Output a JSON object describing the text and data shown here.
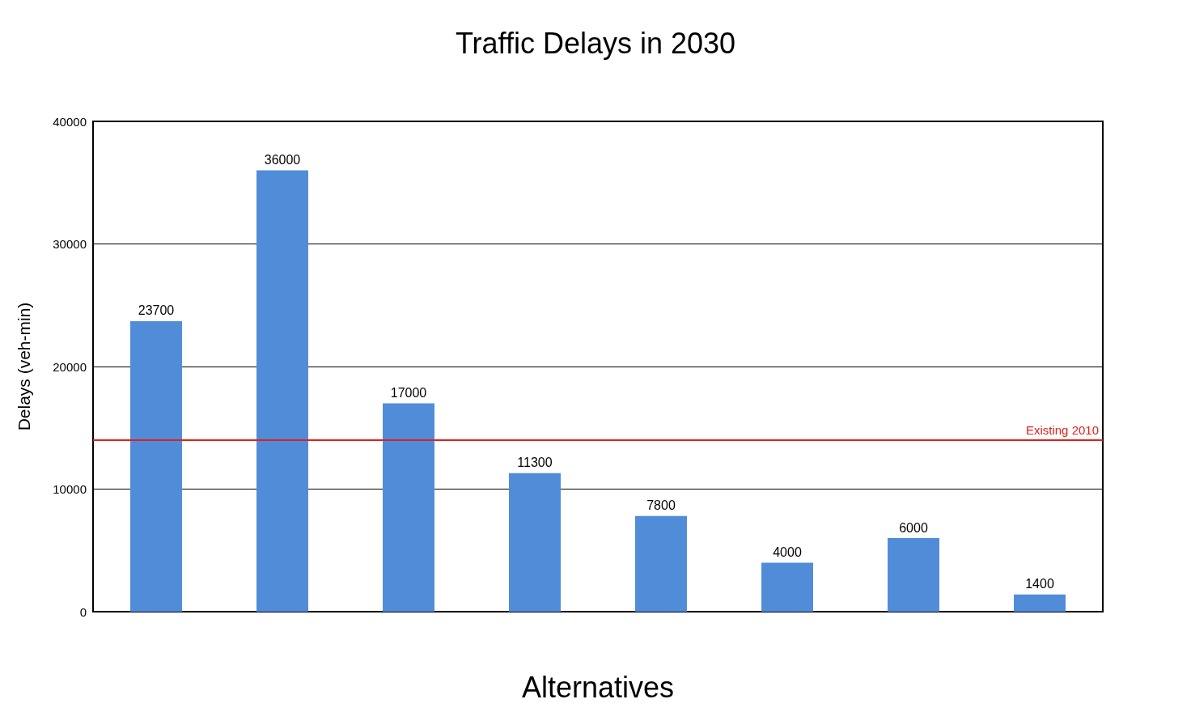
{
  "chart_data": {
    "type": "bar",
    "title": "Traffic Delays in 2030",
    "xlabel": "Alternatives",
    "ylabel": "Delays (veh-min)",
    "categories": [
      null,
      null,
      null,
      null,
      null,
      null,
      null,
      null
    ],
    "values": [
      23700,
      36000,
      17000,
      11300,
      7800,
      4000,
      6000,
      1400
    ],
    "color": "#518cd8",
    "ylim": [
      0,
      40000
    ],
    "yticks": [
      0,
      10000,
      20000,
      30000,
      40000
    ],
    "grid": "y",
    "data_labels": true,
    "ref_lines": [
      {
        "axis": "y",
        "value": 14000,
        "label": "Existing 2010",
        "color": "#e0201b"
      }
    ]
  }
}
